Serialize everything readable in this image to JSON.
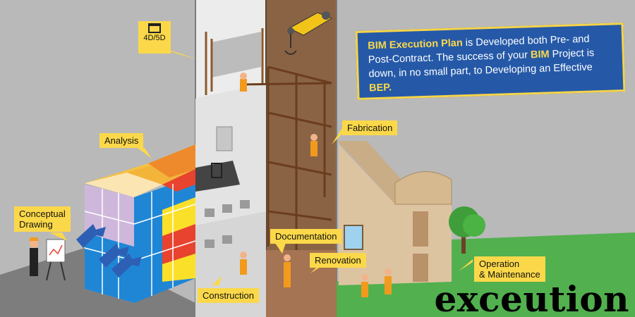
{
  "labels": {
    "fourd": "4D/5D",
    "analysis": "Analysis",
    "conceptual_drawing_line1": "Conceptual",
    "conceptual_drawing_line2": "Drawing",
    "fabrication": "Fabrication",
    "documentation": "Documentation",
    "renovation": "Renovation",
    "construction": "Construction",
    "operation_line1": "Operation",
    "operation_line2": "& Maintenance"
  },
  "callout": {
    "part1": "BIM Execution Plan",
    "part2": " is Developed both Pre- and Post-Contract. The success of your ",
    "part3": "BIM",
    "part4": " Project is down, in no small part, to Developing an Effective ",
    "part5": "BEP."
  },
  "brand_text": "exceution",
  "colors": {
    "background": "#b9b9b9",
    "label_yellow": "#fbd84a",
    "callout_blue": "#2559a8",
    "grass": "#52b04f",
    "cube_blue": "#1f86d6",
    "cube_red": "#e8432f",
    "cube_yellow": "#fbe02a"
  }
}
